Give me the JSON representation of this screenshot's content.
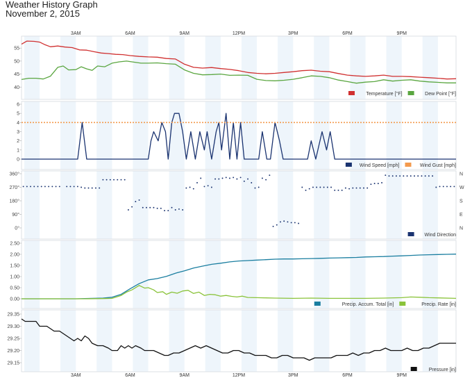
{
  "page": {
    "title": "Weather History Graph",
    "subtitle": "November 2, 2015"
  },
  "time_ticks": [
    "3AM",
    "6AM",
    "9AM",
    "12PM",
    "3PM",
    "6PM",
    "9PM"
  ],
  "chart_data": [
    {
      "type": "line",
      "id": "temperature",
      "x_unit": "hours",
      "xlim": [
        0,
        24
      ],
      "ylim": [
        39,
        58
      ],
      "yticks": [
        "40",
        "45",
        "50",
        "55"
      ],
      "ytick_values": [
        40,
        45,
        50,
        55
      ],
      "series": [
        {
          "name": "Temperature [°F]",
          "color": "#d03030",
          "x": [
            0,
            0.3,
            0.7,
            1.0,
            1.3,
            1.6,
            2.0,
            2.4,
            2.8,
            3.2,
            3.6,
            4.0,
            4.4,
            4.8,
            5.2,
            5.6,
            6.0,
            6.5,
            7.0,
            7.5,
            8.0,
            8.5,
            9.0,
            9.5,
            10.0,
            10.5,
            11.0,
            11.5,
            12.0,
            12.5,
            13.0,
            13.5,
            14.0,
            14.5,
            15.0,
            15.5,
            16.0,
            16.5,
            17.0,
            17.5,
            18.0,
            18.5,
            19.0,
            19.5,
            20.0,
            20.5,
            21.0,
            21.5,
            22.0,
            22.5,
            23.0,
            23.5,
            24.0
          ],
          "values": [
            56.5,
            57.7,
            57.6,
            57.3,
            56.3,
            55.5,
            55.8,
            55.4,
            55.2,
            54.3,
            54.2,
            53.6,
            53.1,
            52.9,
            52.6,
            52.5,
            52.1,
            51.8,
            51.6,
            51.5,
            51.0,
            50.8,
            48.8,
            47.6,
            47.3,
            47.5,
            47.1,
            46.8,
            46.3,
            45.6,
            45.3,
            45.1,
            45.3,
            45.6,
            45.9,
            46.3,
            46.5,
            46.1,
            45.9,
            45.2,
            44.6,
            44.3,
            44.1,
            44.3,
            44.6,
            44.1,
            44.1,
            44.0,
            43.8,
            43.6,
            43.4,
            43.1,
            43.2
          ]
        },
        {
          "name": "Dew Point [°F]",
          "color": "#5aa640",
          "x": [
            0,
            0.4,
            0.8,
            1.2,
            1.6,
            2.0,
            2.3,
            2.6,
            3.0,
            3.3,
            3.6,
            3.9,
            4.2,
            4.6,
            5.0,
            5.4,
            5.8,
            6.2,
            6.6,
            7.0,
            7.5,
            8.0,
            8.5,
            9.0,
            9.5,
            10.0,
            10.5,
            11.0,
            11.5,
            12.0,
            12.5,
            13.0,
            13.5,
            14.0,
            14.5,
            15.0,
            15.5,
            16.0,
            16.5,
            17.0,
            17.5,
            18.0,
            18.5,
            19.0,
            19.5,
            20.0,
            20.5,
            21.0,
            21.5,
            22.0,
            22.5,
            23.0,
            23.5,
            24.0
          ],
          "values": [
            42.9,
            43.4,
            43.4,
            43.1,
            44.2,
            47.6,
            48.1,
            46.6,
            46.7,
            47.8,
            47.0,
            46.4,
            48.1,
            47.8,
            49.2,
            49.7,
            50.0,
            49.6,
            49.2,
            49.2,
            49.3,
            49.0,
            48.8,
            46.6,
            45.3,
            44.7,
            44.8,
            45.0,
            44.5,
            44.6,
            44.5,
            43.0,
            42.5,
            42.4,
            42.6,
            43.0,
            43.6,
            44.3,
            44.1,
            43.6,
            42.7,
            42.1,
            41.5,
            41.9,
            42.1,
            42.8,
            42.3,
            42.6,
            42.8,
            42.3,
            42.0,
            41.8,
            41.6,
            41.6
          ]
        }
      ]
    },
    {
      "type": "line",
      "id": "wind_speed",
      "x_unit": "hours",
      "xlim": [
        0,
        24
      ],
      "ylim": [
        0,
        6
      ],
      "yticks": [
        "0",
        "1",
        "2",
        "3",
        "4",
        "5",
        "6"
      ],
      "ytick_values": [
        0,
        1,
        2,
        3,
        4,
        5,
        6
      ],
      "series": [
        {
          "name": "Wind Speed [mph]",
          "color": "#1a3370",
          "x": [
            0,
            3.1,
            3.35,
            3.6,
            7.0,
            7.15,
            7.3,
            7.55,
            7.75,
            7.95,
            8.1,
            8.3,
            8.45,
            8.7,
            8.9,
            9.1,
            9.35,
            9.6,
            9.85,
            10.1,
            10.25,
            10.5,
            10.75,
            10.9,
            11.05,
            11.3,
            11.5,
            11.7,
            11.9,
            12.1,
            12.3,
            13.1,
            13.3,
            13.55,
            13.75,
            14.0,
            14.25,
            14.45,
            14.7,
            15.8,
            16.0,
            16.25,
            16.6,
            16.85,
            17.05,
            17.3,
            17.45,
            24.0
          ],
          "values": [
            0,
            0,
            4,
            0,
            0,
            2,
            3,
            2,
            4,
            3,
            0,
            4,
            5,
            5,
            3,
            0,
            3,
            0,
            3,
            1,
            3,
            0,
            3,
            4,
            1,
            5,
            0,
            4,
            0,
            4,
            0,
            0,
            3,
            0,
            0,
            4,
            2,
            0,
            0,
            0,
            2,
            0,
            3,
            1,
            3,
            0,
            0,
            0
          ]
        },
        {
          "name": "Wind Gust [mph]",
          "color": "#f39a4d",
          "x": [
            0,
            24
          ],
          "values": [
            4,
            4
          ]
        }
      ]
    },
    {
      "type": "scatter",
      "id": "wind_direction",
      "x_unit": "hours",
      "xlim": [
        0,
        24
      ],
      "ylim": [
        0,
        360
      ],
      "yticks": [
        "0°",
        "90°",
        "180°",
        "270°",
        "360°"
      ],
      "ytick_values": [
        0,
        90,
        180,
        270,
        360
      ],
      "right_ticks": [
        "N",
        "E",
        "S",
        "W",
        "N"
      ],
      "series": [
        {
          "name": "Wind Direction",
          "color": "#1a3370",
          "x": [
            0.1,
            0.3,
            0.5,
            0.7,
            0.9,
            1.1,
            1.3,
            1.5,
            1.7,
            1.9,
            2.1,
            2.5,
            2.7,
            2.9,
            3.1,
            3.3,
            3.5,
            3.7,
            3.9,
            4.1,
            4.3,
            4.5,
            4.7,
            4.9,
            5.1,
            5.3,
            5.5,
            5.7,
            5.9,
            6.1,
            6.3,
            6.5,
            6.7,
            6.9,
            7.1,
            7.3,
            7.5,
            7.7,
            7.9,
            8.1,
            8.3,
            8.5,
            8.7,
            8.9,
            9.1,
            9.3,
            9.5,
            9.7,
            9.9,
            10.1,
            10.3,
            10.5,
            10.7,
            10.9,
            11.1,
            11.3,
            11.5,
            11.7,
            11.9,
            12.1,
            12.3,
            12.5,
            12.7,
            12.9,
            13.1,
            13.3,
            13.5,
            13.7,
            13.9,
            14.1,
            14.3,
            14.5,
            14.7,
            14.9,
            15.1,
            15.3,
            15.5,
            15.7,
            15.9,
            16.1,
            16.3,
            16.5,
            16.7,
            16.9,
            17.1,
            17.3,
            17.5,
            17.7,
            17.9,
            18.1,
            18.3,
            18.5,
            18.7,
            18.9,
            19.1,
            19.3,
            19.5,
            19.7,
            19.9,
            20.1,
            20.3,
            20.5,
            20.7,
            20.9,
            21.1,
            21.3,
            21.5,
            21.7,
            21.9,
            22.1,
            22.3,
            22.5,
            22.7,
            22.9,
            23.1,
            23.3,
            23.5,
            23.7,
            23.9
          ],
          "values": [
            275,
            275,
            275,
            275,
            275,
            275,
            275,
            275,
            275,
            275,
            275,
            275,
            275,
            275,
            275,
            270,
            265,
            265,
            265,
            265,
            265,
            320,
            320,
            320,
            320,
            320,
            320,
            320,
            120,
            140,
            175,
            185,
            135,
            135,
            135,
            135,
            130,
            130,
            115,
            115,
            135,
            120,
            125,
            120,
            265,
            270,
            260,
            300,
            330,
            275,
            280,
            270,
            325,
            325,
            330,
            335,
            330,
            335,
            325,
            335,
            310,
            325,
            300,
            265,
            270,
            330,
            320,
            350,
            10,
            20,
            40,
            45,
            40,
            35,
            35,
            30,
            270,
            250,
            260,
            270,
            270,
            270,
            270,
            270,
            270,
            250,
            250,
            250,
            265,
            260,
            265,
            265,
            265,
            265,
            265,
            290,
            295,
            295,
            300,
            350,
            345,
            345,
            345,
            345,
            345,
            345,
            345,
            345,
            345,
            345,
            345,
            345,
            345,
            270,
            275,
            275,
            275,
            275,
            275
          ]
        }
      ]
    },
    {
      "type": "line",
      "id": "precipitation",
      "x_unit": "hours",
      "xlim": [
        0,
        24
      ],
      "ylim": [
        0,
        2.5
      ],
      "yticks": [
        "0.00",
        "0.50",
        "1.00",
        "1.50",
        "2.00",
        "2.50"
      ],
      "ytick_values": [
        0,
        0.5,
        1.0,
        1.5,
        2.0,
        2.5
      ],
      "series": [
        {
          "name": "Precip. Accum. Total [in]",
          "color": "#1a7ea0",
          "x": [
            0,
            3.0,
            3.5,
            4.5,
            5.0,
            5.5,
            6.0,
            6.5,
            7.0,
            7.5,
            8.0,
            8.5,
            9.0,
            9.5,
            10.0,
            10.5,
            11.0,
            11.5,
            12.0,
            12.5,
            13.0,
            13.5,
            14.0,
            14.5,
            15.0,
            15.5,
            16.0,
            16.5,
            17.0,
            17.5,
            18.0,
            18.5,
            19.0,
            19.5,
            20.0,
            20.5,
            21.0,
            21.5,
            22.0,
            22.5,
            23.0,
            23.5,
            24.0
          ],
          "values": [
            0,
            0,
            0.01,
            0.03,
            0.07,
            0.2,
            0.45,
            0.68,
            0.85,
            0.91,
            1.01,
            1.15,
            1.26,
            1.38,
            1.47,
            1.55,
            1.6,
            1.66,
            1.7,
            1.72,
            1.74,
            1.76,
            1.78,
            1.79,
            1.79,
            1.8,
            1.81,
            1.82,
            1.83,
            1.84,
            1.85,
            1.86,
            1.88,
            1.89,
            1.9,
            1.92,
            1.93,
            1.95,
            1.97,
            1.98,
            1.99,
            2.0,
            2.01
          ]
        },
        {
          "name": "Precip. Rate [in]",
          "color": "#8ac33a",
          "x": [
            0,
            3.5,
            4.5,
            5.0,
            5.5,
            5.8,
            6.1,
            6.5,
            6.8,
            7.0,
            7.3,
            7.5,
            7.8,
            8.0,
            8.3,
            8.6,
            8.9,
            9.2,
            9.5,
            9.8,
            10.1,
            10.4,
            10.7,
            11.0,
            11.3,
            11.6,
            11.9,
            12.2,
            12.5,
            13.0,
            13.5,
            14.0,
            15.0,
            16.0,
            17.0,
            18.0,
            19.0,
            20.0,
            21.0,
            21.5,
            22.0,
            22.5,
            23.0,
            24.0
          ],
          "values": [
            0,
            0,
            0.01,
            0.02,
            0.15,
            0.3,
            0.4,
            0.6,
            0.48,
            0.5,
            0.4,
            0.28,
            0.32,
            0.2,
            0.3,
            0.25,
            0.35,
            0.38,
            0.24,
            0.3,
            0.15,
            0.2,
            0.18,
            0.12,
            0.15,
            0.11,
            0.08,
            0.12,
            0.06,
            0.05,
            0.04,
            0.03,
            0.02,
            0.03,
            0.02,
            0.02,
            0.02,
            0.03,
            0.05,
            0.08,
            0.07,
            0.05,
            0.04,
            0.02
          ]
        }
      ]
    },
    {
      "type": "line",
      "id": "pressure",
      "x_unit": "hours",
      "xlim": [
        0,
        24
      ],
      "ylim": [
        29.15,
        29.35
      ],
      "yticks": [
        "29.15",
        "29.20",
        "29.25",
        "29.30",
        "29.35"
      ],
      "ytick_values": [
        29.15,
        29.2,
        29.25,
        29.3,
        29.35
      ],
      "series": [
        {
          "name": "Pressure [in]",
          "color": "#111111",
          "x": [
            0,
            0.2,
            0.8,
            1.0,
            1.4,
            1.6,
            1.8,
            2.1,
            2.3,
            2.5,
            2.7,
            2.9,
            3.1,
            3.3,
            3.5,
            3.7,
            3.9,
            4.2,
            4.5,
            4.8,
            5.0,
            5.3,
            5.5,
            5.7,
            5.9,
            6.1,
            6.3,
            6.6,
            6.8,
            7.0,
            7.3,
            7.6,
            7.9,
            8.1,
            8.4,
            8.7,
            9.0,
            9.3,
            9.6,
            9.9,
            10.2,
            10.5,
            10.8,
            11.1,
            11.4,
            11.7,
            12.0,
            12.3,
            12.6,
            12.9,
            13.2,
            13.5,
            13.8,
            14.1,
            14.4,
            14.7,
            15.0,
            15.3,
            15.6,
            15.9,
            16.2,
            16.5,
            16.8,
            17.1,
            17.4,
            17.7,
            18.0,
            18.3,
            18.6,
            18.9,
            19.2,
            19.5,
            19.8,
            20.1,
            20.4,
            20.7,
            21.0,
            21.3,
            21.6,
            21.9,
            22.2,
            22.5,
            22.8,
            23.1,
            23.4,
            23.7,
            24.0
          ],
          "values": [
            29.33,
            29.32,
            29.32,
            29.3,
            29.3,
            29.29,
            29.28,
            29.28,
            29.27,
            29.26,
            29.25,
            29.24,
            29.25,
            29.24,
            29.26,
            29.25,
            29.23,
            29.22,
            29.22,
            29.21,
            29.2,
            29.2,
            29.22,
            29.21,
            29.22,
            29.21,
            29.22,
            29.21,
            29.2,
            29.2,
            29.2,
            29.19,
            29.18,
            29.18,
            29.19,
            29.19,
            29.2,
            29.21,
            29.22,
            29.21,
            29.22,
            29.21,
            29.2,
            29.19,
            29.19,
            29.2,
            29.2,
            29.19,
            29.19,
            29.18,
            29.18,
            29.18,
            29.17,
            29.17,
            29.18,
            29.18,
            29.17,
            29.17,
            29.17,
            29.16,
            29.17,
            29.17,
            29.17,
            29.17,
            29.18,
            29.18,
            29.18,
            29.19,
            29.18,
            29.19,
            29.19,
            29.2,
            29.2,
            29.21,
            29.2,
            29.2,
            29.2,
            29.21,
            29.2,
            29.2,
            29.21,
            29.21,
            29.22,
            29.23,
            29.23,
            29.23,
            29.23
          ]
        }
      ]
    }
  ]
}
